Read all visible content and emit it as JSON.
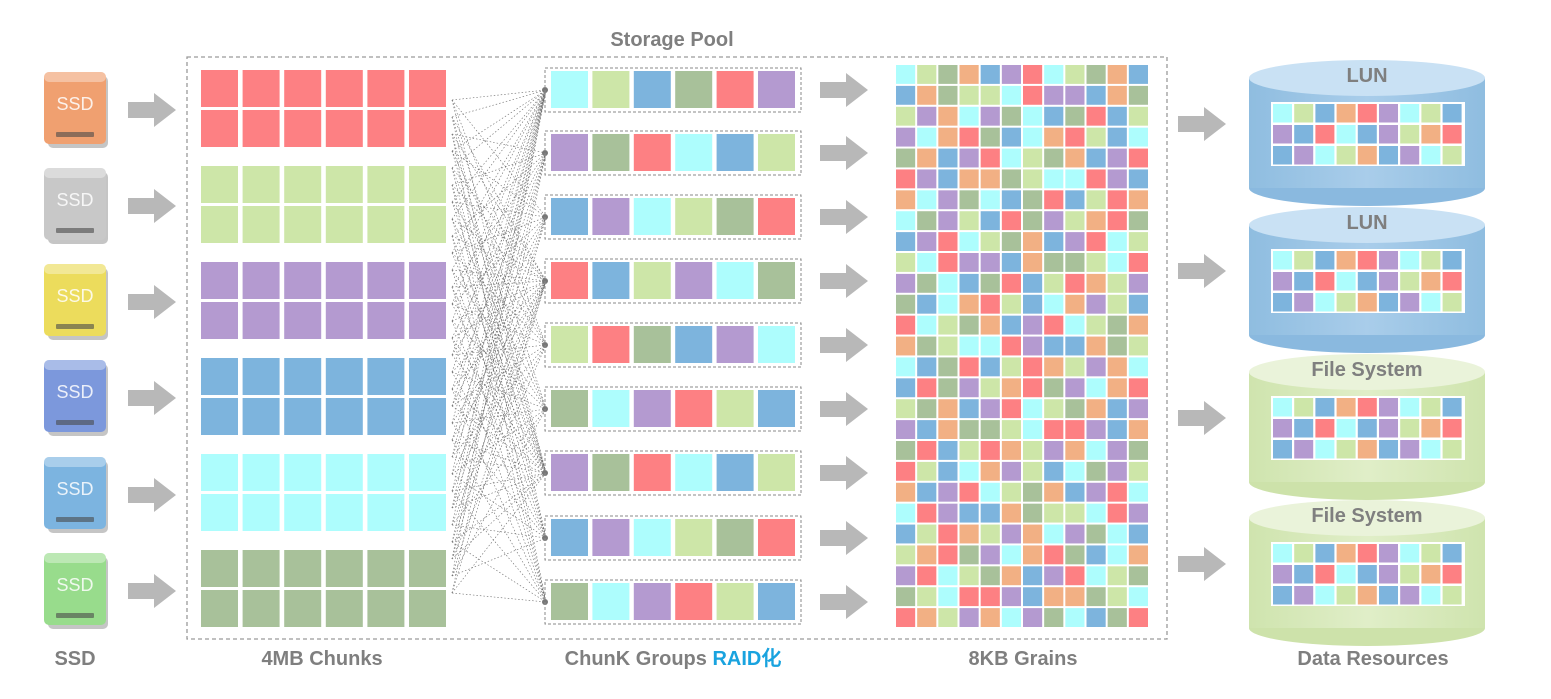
{
  "pool_title": "Storage Pool",
  "ssd_drive_label": "SSD",
  "bottom_labels": {
    "ssd": "SSD",
    "chunks": "4MB Chunks",
    "chunk_groups": "ChunK Groups ",
    "raid": "RAID化",
    "grains": "8KB Grains",
    "data_resources": "Data Resources"
  },
  "resources": [
    {
      "label": "LUN",
      "kind": "lun"
    },
    {
      "label": "LUN",
      "kind": "lun"
    },
    {
      "label": "File System",
      "kind": "fs"
    },
    {
      "label": "File System",
      "kind": "fs"
    }
  ],
  "ssd_colors": [
    "#f0a070",
    "#c8c8c8",
    "#ecdc5c",
    "#7c98dc",
    "#7cb4e0",
    "#98dc8c"
  ],
  "palette": {
    "red": "#fd8083",
    "green": "#cde6a8",
    "purple": "#b49ad0",
    "blue": "#7db4dd",
    "cyan": "#adfdfd",
    "olive": "#a8c19a",
    "orange": "#f2b084"
  },
  "chunk_rows": [
    "red",
    "green",
    "purple",
    "blue",
    "cyan",
    "olive"
  ],
  "chunk_groups": [
    [
      "cyan",
      "green",
      "blue",
      "olive",
      "red",
      "purple"
    ],
    [
      "purple",
      "olive",
      "red",
      "cyan",
      "blue",
      "green"
    ],
    [
      "blue",
      "purple",
      "cyan",
      "green",
      "olive",
      "red"
    ],
    [
      "red",
      "blue",
      "green",
      "purple",
      "cyan",
      "olive"
    ],
    [
      "green",
      "red",
      "olive",
      "blue",
      "purple",
      "cyan"
    ],
    [
      "olive",
      "cyan",
      "purple",
      "red",
      "green",
      "blue"
    ],
    [
      "purple",
      "olive",
      "red",
      "cyan",
      "blue",
      "green"
    ],
    [
      "blue",
      "purple",
      "cyan",
      "green",
      "olive",
      "red"
    ],
    [
      "olive",
      "cyan",
      "purple",
      "red",
      "green",
      "blue"
    ]
  ],
  "resource_grain_rows": [
    [
      "cyan",
      "green",
      "blue",
      "orange",
      "red",
      "purple",
      "cyan",
      "green",
      "blue"
    ],
    [
      "purple",
      "blue",
      "red",
      "cyan",
      "blue",
      "purple",
      "green",
      "orange",
      "red"
    ],
    [
      "blue",
      "purple",
      "cyan",
      "green",
      "orange",
      "blue",
      "purple",
      "cyan",
      "green"
    ]
  ]
}
